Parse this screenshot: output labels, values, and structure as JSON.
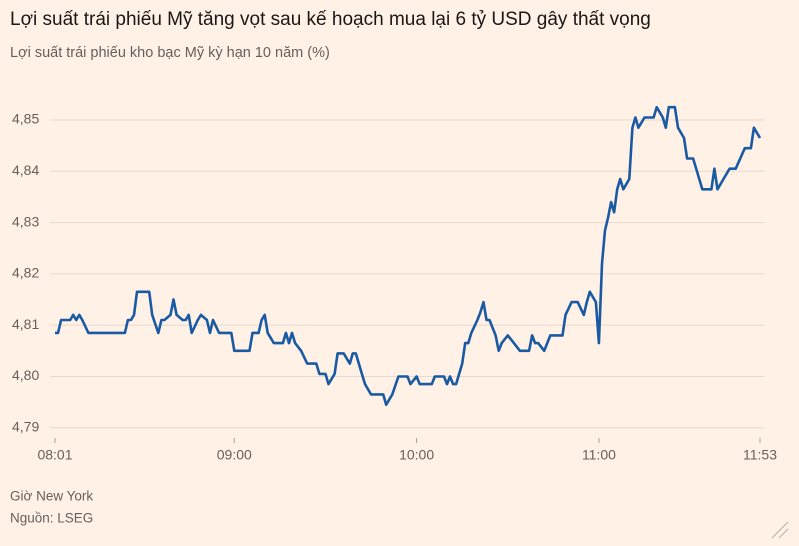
{
  "chart_data": {
    "type": "line",
    "title": "Lợi suất trái phiếu Mỹ tăng vọt sau kế hoạch mua lại 6 tỷ USD gây thất vọng",
    "subtitle": "Lợi suất trái phiếu kho bạc Mỹ kỳ hạn 10 năm (%)",
    "notes": [
      "Giờ New York",
      "Nguồn: LSEG"
    ],
    "color": "#1a5aa3",
    "grid": true,
    "x": [
      "08:01",
      "08:02",
      "08:03",
      "08:06",
      "08:07",
      "08:08",
      "08:09",
      "08:10",
      "08:12",
      "08:24",
      "08:25",
      "08:26",
      "08:27",
      "08:28",
      "08:32",
      "08:33",
      "08:35",
      "08:36",
      "08:37",
      "08:39",
      "08:40",
      "08:41",
      "08:43",
      "08:44",
      "08:45",
      "08:46",
      "08:48",
      "08:49",
      "08:51",
      "08:52",
      "08:53",
      "08:55",
      "08:59",
      "09:00",
      "09:05",
      "09:06",
      "09:08",
      "09:09",
      "09:10",
      "09:11",
      "09:13",
      "09:16",
      "09:17",
      "09:18",
      "09:19",
      "09:20",
      "09:22",
      "09:24",
      "09:27",
      "09:28",
      "09:30",
      "09:31",
      "09:33",
      "09:34",
      "09:36",
      "09:38",
      "09:39",
      "09:40",
      "09:42",
      "09:43",
      "09:45",
      "09:49",
      "09:50",
      "09:52",
      "09:54",
      "09:57",
      "09:58",
      "10:00",
      "10:01",
      "10:05",
      "10:06",
      "10:09",
      "10:10",
      "10:11",
      "10:12",
      "10:13",
      "10:15",
      "10:16",
      "10:17",
      "10:18",
      "10:20",
      "10:21",
      "10:22",
      "10:23",
      "10:24",
      "10:26",
      "10:27",
      "10:28",
      "10:30",
      "10:32",
      "10:34",
      "10:37",
      "10:38",
      "10:39",
      "10:40",
      "10:42",
      "10:44",
      "10:48",
      "10:49",
      "10:51",
      "10:53",
      "10:55",
      "10:56",
      "10:57",
      "10:59",
      "11:00",
      "11:01",
      "11:02",
      "11:03",
      "11:04",
      "11:05",
      "11:06",
      "11:07",
      "11:08",
      "11:10",
      "11:11",
      "11:12",
      "11:13",
      "11:15",
      "11:18",
      "11:19",
      "11:21",
      "11:22",
      "11:23",
      "11:25",
      "11:26",
      "11:28",
      "11:29",
      "11:31",
      "11:32",
      "11:34",
      "11:37",
      "11:38",
      "11:39",
      "11:41",
      "11:43",
      "11:45",
      "11:48",
      "11:50",
      "11:51",
      "11:53"
    ],
    "values": [
      4.8085,
      4.8085,
      4.811,
      4.811,
      4.812,
      4.811,
      4.812,
      4.811,
      4.8085,
      4.8085,
      4.811,
      4.811,
      4.812,
      4.8165,
      4.8165,
      4.812,
      4.8085,
      4.811,
      4.811,
      4.812,
      4.815,
      4.812,
      4.811,
      4.811,
      4.812,
      4.8085,
      4.811,
      4.812,
      4.811,
      4.8085,
      4.811,
      4.8085,
      4.8085,
      4.805,
      4.805,
      4.8085,
      4.8085,
      4.811,
      4.812,
      4.8085,
      4.8065,
      4.8065,
      4.8085,
      4.8065,
      4.8085,
      4.8065,
      4.805,
      4.8025,
      4.8025,
      4.8005,
      4.8005,
      4.7985,
      4.8005,
      4.8045,
      4.8045,
      4.8025,
      4.8045,
      4.8045,
      4.8005,
      4.7985,
      4.7965,
      4.7965,
      4.7945,
      4.7965,
      4.8,
      4.8,
      4.7985,
      4.8,
      4.7985,
      4.7985,
      4.8,
      4.8,
      4.7985,
      4.8,
      4.7985,
      4.7985,
      4.8025,
      4.8065,
      4.8065,
      4.8085,
      4.811,
      4.8125,
      4.8145,
      4.811,
      4.811,
      4.808,
      4.805,
      4.8065,
      4.808,
      4.8065,
      4.805,
      4.805,
      4.808,
      4.8065,
      4.8065,
      4.805,
      4.808,
      4.808,
      4.812,
      4.8145,
      4.8145,
      4.812,
      4.8145,
      4.8165,
      4.8145,
      4.8065,
      4.822,
      4.8285,
      4.831,
      4.834,
      4.832,
      4.8365,
      4.8385,
      4.8365,
      4.8385,
      4.8485,
      4.8505,
      4.8485,
      4.8505,
      4.8505,
      4.8525,
      4.8505,
      4.8485,
      4.8525,
      4.8525,
      4.8485,
      4.8465,
      4.8425,
      4.8425,
      4.8405,
      4.8365,
      4.8365,
      4.8405,
      4.8365,
      4.8385,
      4.8405,
      4.8405,
      4.8445,
      4.8445,
      4.8485,
      4.8465
    ],
    "xlim": [
      "08:01",
      "11:53"
    ],
    "xticks": [
      "08:01",
      "09:00",
      "10:00",
      "11:00",
      "11:53"
    ],
    "ylim": [
      4.788,
      4.854
    ],
    "yticks": [
      {
        "value": 4.79,
        "label": "4,79"
      },
      {
        "value": 4.8,
        "label": "4,80"
      },
      {
        "value": 4.81,
        "label": "4,81"
      },
      {
        "value": 4.82,
        "label": "4,82"
      },
      {
        "value": 4.83,
        "label": "4,83"
      },
      {
        "value": 4.84,
        "label": "4,84"
      },
      {
        "value": 4.85,
        "label": "4,85"
      }
    ]
  }
}
